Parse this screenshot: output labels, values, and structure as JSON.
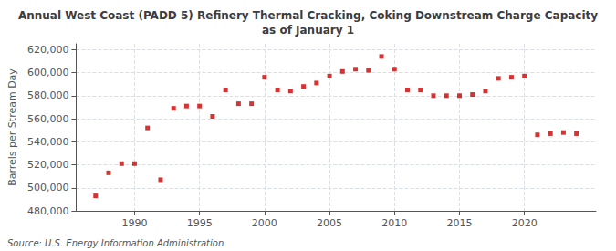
{
  "chart_data": {
    "type": "scatter",
    "title": "Annual West Coast (PADD 5) Refinery Thermal Cracking, Coking Downstream Charge Capacity\nas of January 1",
    "ylabel": "Barrels per Stream Day",
    "source": "Source: U.S. Energy Information Administration",
    "x": [
      1987,
      1988,
      1989,
      1990,
      1991,
      1992,
      1993,
      1994,
      1995,
      1996,
      1997,
      1998,
      1999,
      2000,
      2001,
      2002,
      2003,
      2004,
      2005,
      2006,
      2007,
      2008,
      2009,
      2010,
      2011,
      2012,
      2013,
      2014,
      2015,
      2016,
      2017,
      2018,
      2019,
      2020,
      2021,
      2022,
      2023,
      2024
    ],
    "values": [
      493000,
      513000,
      521000,
      521000,
      552000,
      507000,
      569000,
      571000,
      571000,
      562000,
      585000,
      573000,
      573000,
      596000,
      585000,
      584000,
      588000,
      591000,
      597000,
      601000,
      603000,
      602000,
      614000,
      603000,
      585000,
      585000,
      580000,
      580000,
      580000,
      581000,
      584000,
      595000,
      596000,
      597000,
      546000,
      547000,
      548000,
      547000
    ],
    "color": "#cc0000",
    "marker": "square",
    "xlim": [
      1985.5,
      2025.5
    ],
    "xticks": [
      1990,
      1995,
      2000,
      2005,
      2010,
      2015,
      2020
    ],
    "ylim": [
      480000,
      625000
    ],
    "yticks": [
      {
        "value": 480000,
        "label": "480,000"
      },
      {
        "value": 500000,
        "label": "500,000"
      },
      {
        "value": 520000,
        "label": "520,000"
      },
      {
        "value": 540000,
        "label": "540,000"
      },
      {
        "value": 560000,
        "label": "560,000"
      },
      {
        "value": 580000,
        "label": "580,000"
      },
      {
        "value": 600000,
        "label": "600,000"
      },
      {
        "value": 620000,
        "label": "620,000"
      }
    ],
    "grid": true
  }
}
